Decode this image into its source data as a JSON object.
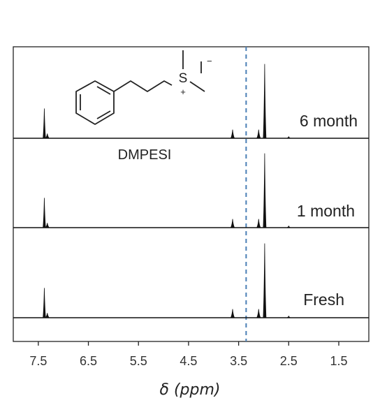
{
  "chart_data": {
    "type": "line",
    "title": "",
    "xlabel": "δ (ppm)",
    "ylabel": "",
    "xlim": [
      8.0,
      0.9
    ],
    "x_reversed": true,
    "x_ticks": [
      7.5,
      6.5,
      5.5,
      4.5,
      3.5,
      2.5,
      1.5
    ],
    "x_tick_labels": [
      "7.5",
      "6.5",
      "5.5",
      "4.5",
      "3.5",
      "2.5",
      "1.5"
    ],
    "grid": false,
    "reference_line": {
      "x": 3.35,
      "style": "dashed",
      "color": "#4a7fb5"
    },
    "series": [
      {
        "name": "6 month",
        "peaks": [
          {
            "x": 7.38,
            "height": 0.38
          },
          {
            "x": 7.32,
            "height": 0.06
          },
          {
            "x": 3.62,
            "height": 0.11
          },
          {
            "x": 3.1,
            "height": 0.11
          },
          {
            "x": 2.98,
            "height": 0.95
          },
          {
            "x": 2.5,
            "height": 0.02
          }
        ]
      },
      {
        "name": "1 month",
        "peaks": [
          {
            "x": 7.38,
            "height": 0.38
          },
          {
            "x": 7.32,
            "height": 0.06
          },
          {
            "x": 3.62,
            "height": 0.11
          },
          {
            "x": 3.1,
            "height": 0.11
          },
          {
            "x": 2.98,
            "height": 0.95
          },
          {
            "x": 2.5,
            "height": 0.02
          }
        ]
      },
      {
        "name": "Fresh",
        "peaks": [
          {
            "x": 7.38,
            "height": 0.38
          },
          {
            "x": 7.32,
            "height": 0.06
          },
          {
            "x": 3.62,
            "height": 0.11
          },
          {
            "x": 3.1,
            "height": 0.11
          },
          {
            "x": 2.98,
            "height": 0.95
          },
          {
            "x": 2.5,
            "height": 0.02
          }
        ]
      }
    ],
    "annotations": {
      "compound": "DMPESI",
      "atom_s": "S",
      "charge": "+",
      "counterion": "I",
      "counterion_charge": "−"
    }
  }
}
